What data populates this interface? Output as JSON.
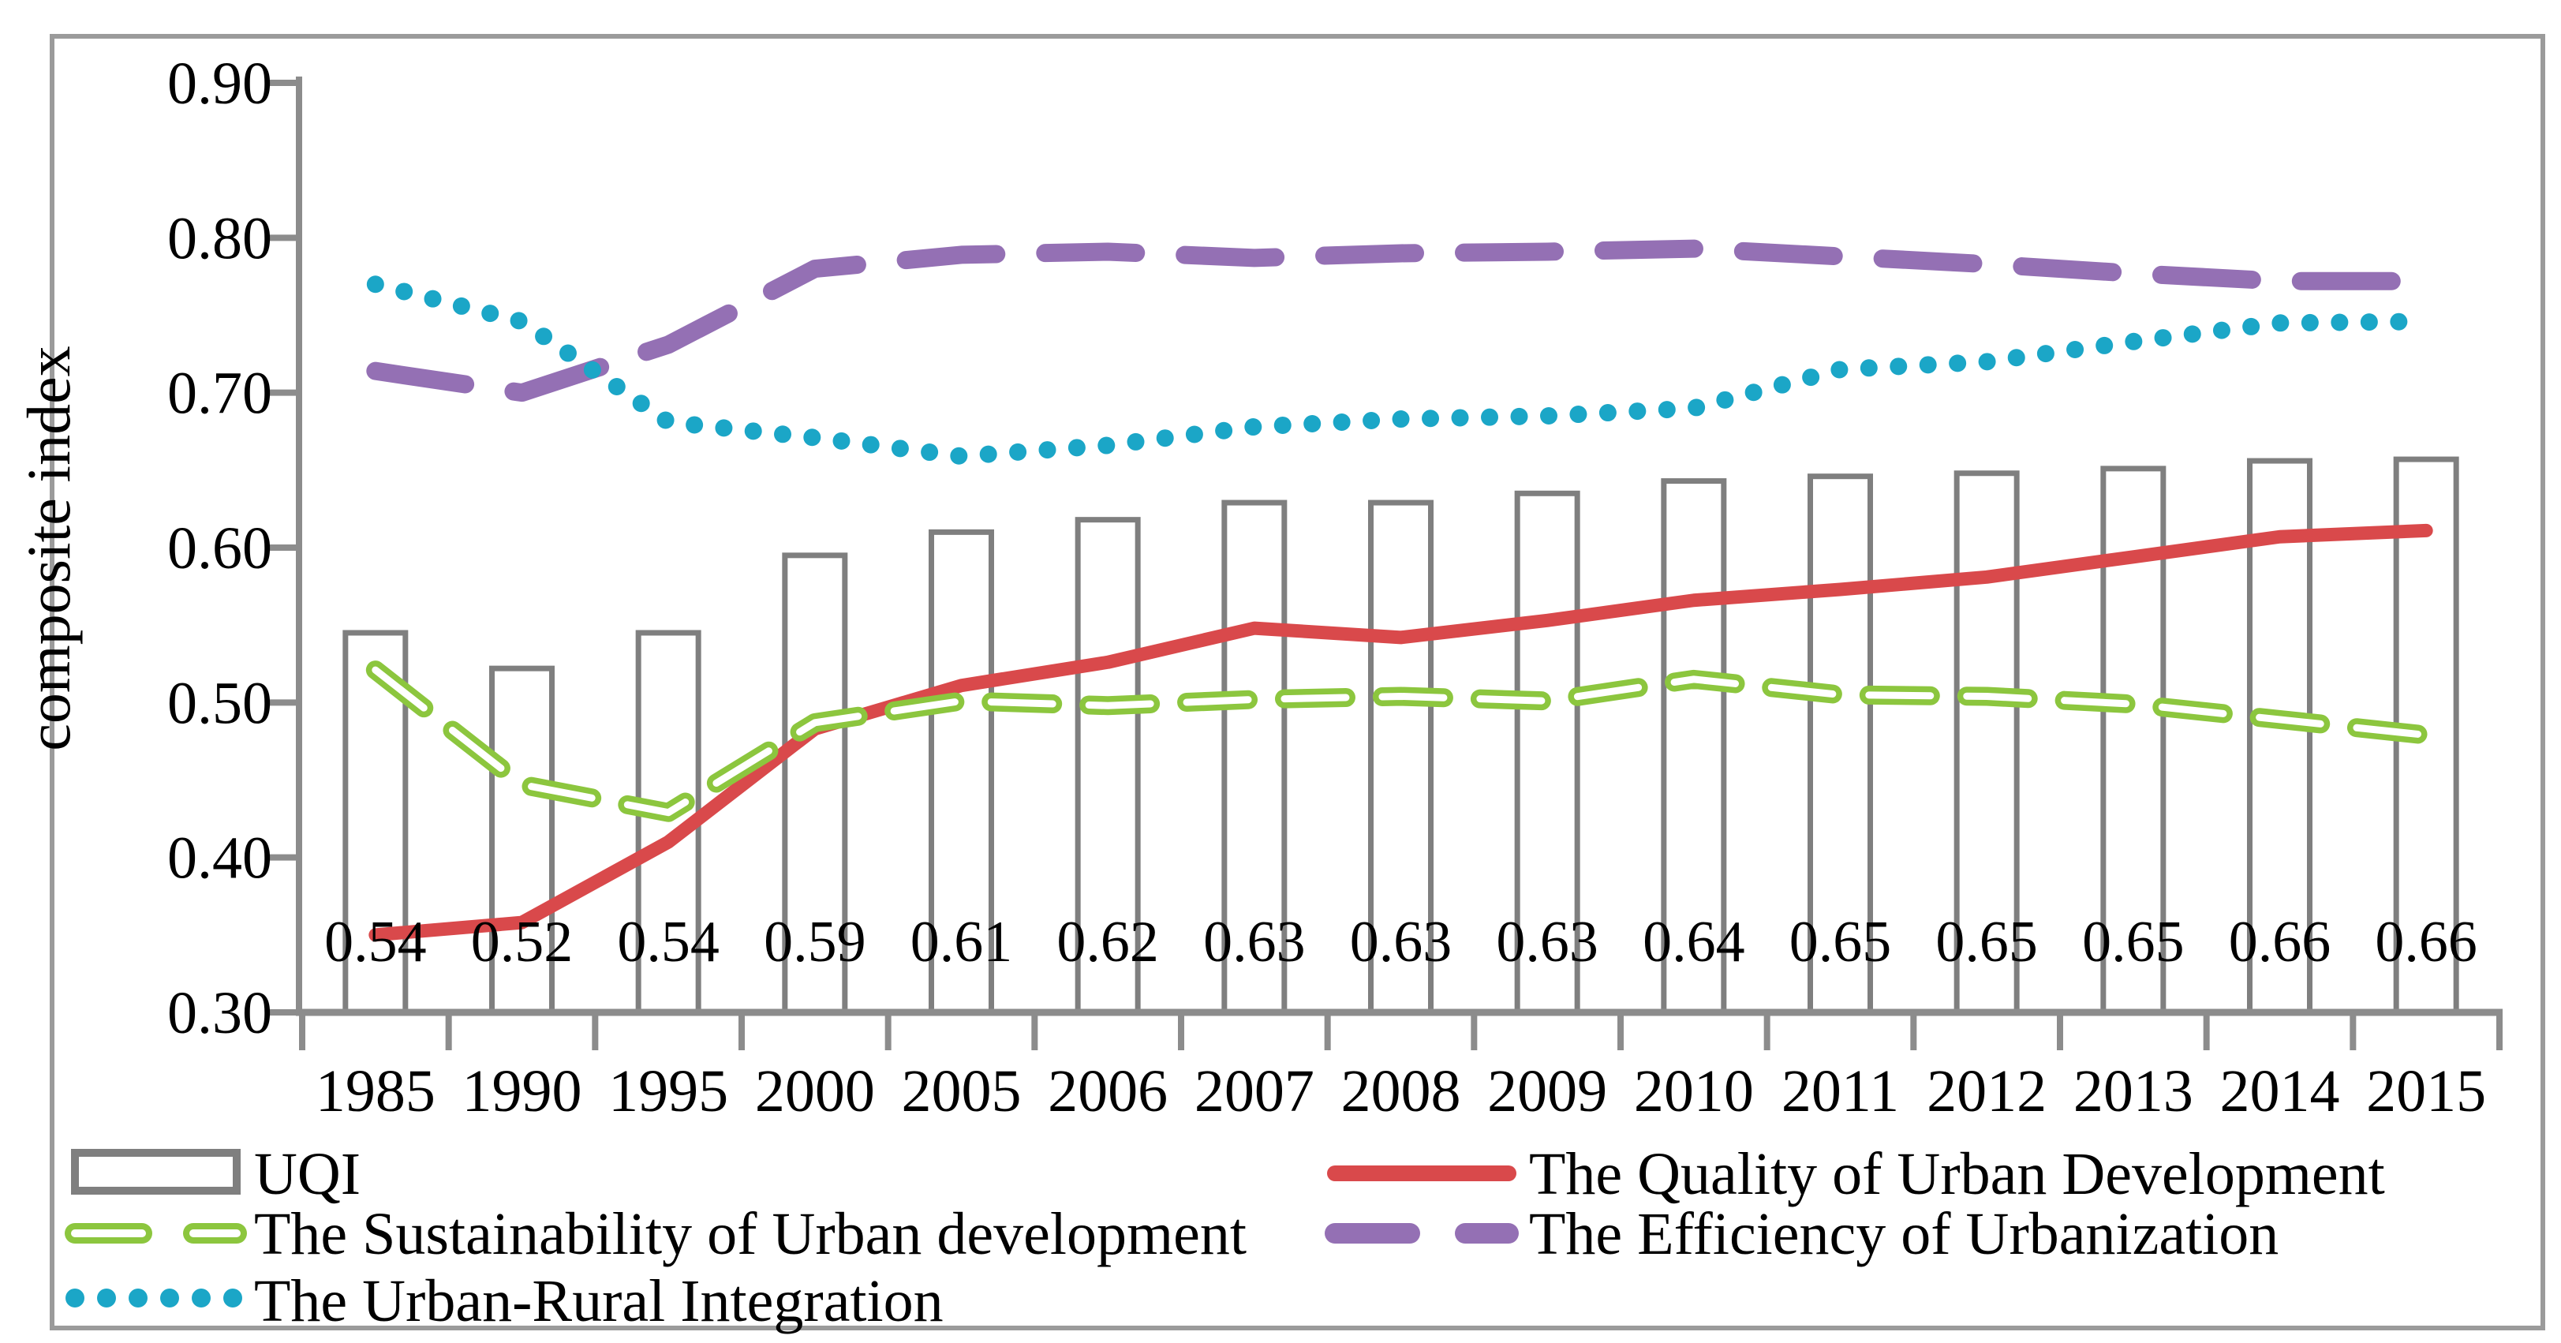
{
  "figure": {
    "background": "#ffffff",
    "border_color": "#9b9b9b",
    "axis_color": "#8c8c8c",
    "text_color": "#000000"
  },
  "chart_data": {
    "type": "combo: outlined bar + lines (bar chart with 4 overlaid line series)",
    "title": "",
    "xlabel": "",
    "ylabel": "composite index",
    "ylim": [
      0.3,
      0.9
    ],
    "ytick_step": 0.1,
    "ytick_labels": [
      "0.30",
      "0.40",
      "0.50",
      "0.60",
      "0.70",
      "0.80",
      "0.90"
    ],
    "grid": false,
    "legend_position": "bottom, two columns",
    "categories": [
      "1985",
      "1990",
      "1995",
      "2000",
      "2005",
      "2006",
      "2007",
      "2008",
      "2009",
      "2010",
      "2011",
      "2012",
      "2013",
      "2014",
      "2015"
    ],
    "bar_series": {
      "name": "UQI",
      "bar_fill": "#ffffff",
      "bar_stroke": "#7f7f7f",
      "values": [
        0.545,
        0.522,
        0.545,
        0.595,
        0.61,
        0.618,
        0.629,
        0.629,
        0.635,
        0.643,
        0.646,
        0.648,
        0.651,
        0.656,
        0.657
      ],
      "data_labels": [
        "0.54",
        "0.52",
        "0.54",
        "0.59",
        "0.61",
        "0.62",
        "0.63",
        "0.63",
        "0.63",
        "0.64",
        "0.65",
        "0.65",
        "0.65",
        "0.66",
        "0.66"
      ]
    },
    "line_series": [
      {
        "name": "The Quality of Urban Development",
        "style": "solid",
        "color": "#d9494b",
        "values": [
          0.35,
          0.358,
          0.41,
          0.483,
          0.511,
          0.526,
          0.548,
          0.542,
          0.553,
          0.566,
          0.573,
          0.581,
          0.594,
          0.607,
          0.611
        ]
      },
      {
        "name": "The Sustainability of Urban development",
        "style": "hollow-dash",
        "color": "#8cc63e",
        "values": [
          0.521,
          0.447,
          0.429,
          0.487,
          0.501,
          0.498,
          0.502,
          0.504,
          0.501,
          0.515,
          0.505,
          0.504,
          0.499,
          0.489,
          0.479
        ]
      },
      {
        "name": "The Efficiency of Urbanization",
        "style": "long-dash",
        "color": "#9470b4",
        "values": [
          0.714,
          0.7,
          0.731,
          0.78,
          0.789,
          0.791,
          0.787,
          0.79,
          0.791,
          0.793,
          0.788,
          0.783,
          0.777,
          0.772,
          0.772
        ]
      },
      {
        "name": "The Urban-Rural Integration",
        "style": "dotted",
        "color": "#1ba6c7",
        "values": [
          0.77,
          0.746,
          0.681,
          0.671,
          0.659,
          0.666,
          0.678,
          0.683,
          0.685,
          0.69,
          0.715,
          0.72,
          0.733,
          0.745,
          0.746
        ]
      }
    ]
  }
}
